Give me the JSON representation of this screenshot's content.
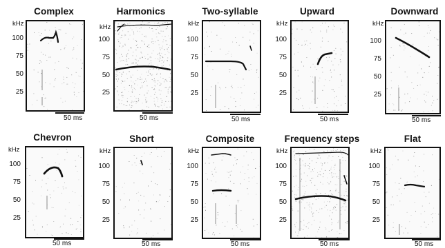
{
  "axis": {
    "unit_label": "kHz",
    "ticks": [
      "100",
      "75",
      "50",
      "25"
    ],
    "scale_bar_label": "50 ms"
  },
  "panels": [
    {
      "title": "Complex"
    },
    {
      "title": "Harmonics"
    },
    {
      "title": "Two-syllable"
    },
    {
      "title": "Upward"
    },
    {
      "title": "Downward"
    },
    {
      "title": "Chevron"
    },
    {
      "title": "Short"
    },
    {
      "title": "Composite"
    },
    {
      "title": "Frequency steps"
    },
    {
      "title": "Flat"
    }
  ]
}
